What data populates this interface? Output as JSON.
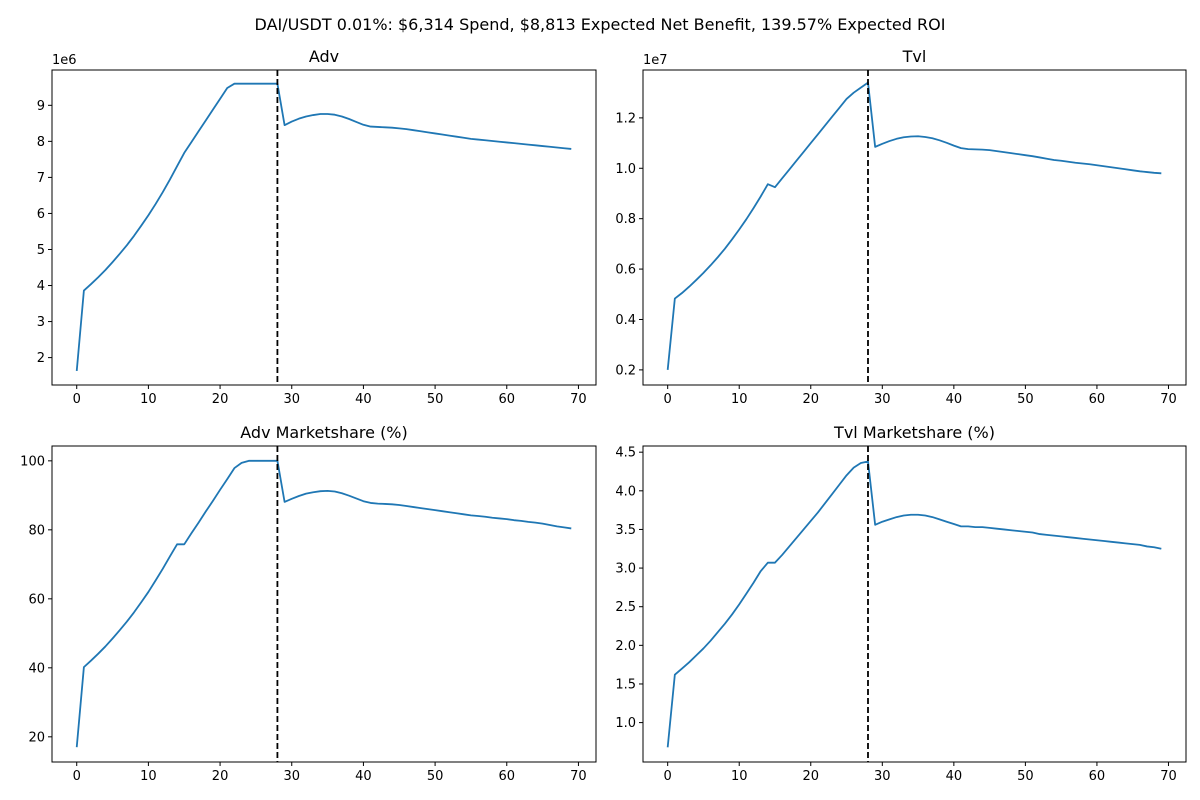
{
  "figure": {
    "suptitle": "DAI/USDT 0.01%: $6,314 Spend, $8,813 Expected Net Benefit, 139.57% Expected ROI"
  },
  "chart_data": [
    {
      "type": "line",
      "title": "Adv",
      "xlabel": "",
      "ylabel": "",
      "offset_text": "1e6",
      "x_ticks": [
        0,
        10,
        20,
        30,
        40,
        50,
        60,
        70
      ],
      "y_ticks": [
        2,
        3,
        4,
        5,
        6,
        7,
        8,
        9
      ],
      "xlim": [
        -3.45,
        72.45
      ],
      "ylim": [
        1.24,
        9.98
      ],
      "vline_x": 28,
      "vline_style": "dashed-black",
      "series": [
        {
          "color": "#1f77b4",
          "x": [
            0,
            1,
            2,
            3,
            4,
            5,
            6,
            7,
            8,
            9,
            10,
            11,
            12,
            13,
            14,
            15,
            16,
            17,
            18,
            19,
            20,
            21,
            22,
            23,
            24,
            25,
            26,
            27,
            28,
            29,
            30,
            31,
            32,
            33,
            34,
            35,
            36,
            37,
            38,
            39,
            40,
            41,
            42,
            43,
            44,
            45,
            46,
            47,
            48,
            49,
            50,
            51,
            52,
            53,
            54,
            55,
            56,
            57,
            58,
            59,
            60,
            61,
            62,
            63,
            64,
            65,
            66,
            67,
            68,
            69
          ],
          "y": [
            1.63,
            3.86,
            4.04,
            4.23,
            4.43,
            4.65,
            4.88,
            5.12,
            5.38,
            5.66,
            5.95,
            6.26,
            6.59,
            6.94,
            7.31,
            7.68,
            7.98,
            8.28,
            8.58,
            8.88,
            9.18,
            9.48,
            9.6,
            9.6,
            9.6,
            9.6,
            9.6,
            9.6,
            9.6,
            8.45,
            8.55,
            8.63,
            8.69,
            8.73,
            8.76,
            8.76,
            8.74,
            8.69,
            8.62,
            8.54,
            8.46,
            8.41,
            8.4,
            8.39,
            8.38,
            8.36,
            8.34,
            8.31,
            8.28,
            8.25,
            8.22,
            8.19,
            8.16,
            8.13,
            8.1,
            8.07,
            8.05,
            8.03,
            8.01,
            7.99,
            7.97,
            7.95,
            7.93,
            7.91,
            7.89,
            7.87,
            7.85,
            7.83,
            7.81,
            7.79
          ]
        }
      ]
    },
    {
      "type": "line",
      "title": "Tvl",
      "xlabel": "",
      "ylabel": "",
      "offset_text": "1e7",
      "x_ticks": [
        0,
        10,
        20,
        30,
        40,
        50,
        60,
        70
      ],
      "y_ticks": [
        0.2,
        0.4,
        0.6,
        0.8,
        1.0,
        1.2
      ],
      "y_tick_labels": [
        "0.2",
        "0.4",
        "0.6",
        "0.8",
        "1.0",
        "1.2"
      ],
      "xlim": [
        -3.45,
        72.45
      ],
      "ylim": [
        0.14,
        1.39
      ],
      "vline_x": 28,
      "vline_style": "dashed-black",
      "series": [
        {
          "color": "#1f77b4",
          "x": [
            0,
            1,
            2,
            3,
            4,
            5,
            6,
            7,
            8,
            9,
            10,
            11,
            12,
            13,
            14,
            15,
            16,
            17,
            18,
            19,
            20,
            21,
            22,
            23,
            24,
            25,
            26,
            27,
            28,
            29,
            30,
            31,
            32,
            33,
            34,
            35,
            36,
            37,
            38,
            39,
            40,
            41,
            42,
            43,
            44,
            45,
            46,
            47,
            48,
            49,
            50,
            51,
            52,
            53,
            54,
            55,
            56,
            57,
            58,
            59,
            60,
            61,
            62,
            63,
            64,
            65,
            66,
            67,
            68,
            69
          ],
          "y": [
            0.2,
            0.483,
            0.505,
            0.53,
            0.557,
            0.585,
            0.615,
            0.647,
            0.681,
            0.718,
            0.757,
            0.798,
            0.842,
            0.888,
            0.937,
            0.925,
            0.96,
            0.995,
            1.03,
            1.065,
            1.1,
            1.135,
            1.17,
            1.205,
            1.24,
            1.275,
            1.3,
            1.32,
            1.34,
            1.085,
            1.097,
            1.108,
            1.117,
            1.123,
            1.126,
            1.127,
            1.124,
            1.119,
            1.111,
            1.101,
            1.09,
            1.08,
            1.076,
            1.075,
            1.074,
            1.072,
            1.068,
            1.064,
            1.06,
            1.056,
            1.052,
            1.048,
            1.043,
            1.038,
            1.033,
            1.03,
            1.026,
            1.022,
            1.019,
            1.016,
            1.012,
            1.008,
            1.004,
            1.0,
            0.996,
            0.992,
            0.988,
            0.985,
            0.982,
            0.98
          ]
        }
      ]
    },
    {
      "type": "line",
      "title": "Adv Marketshare (%)",
      "xlabel": "",
      "ylabel": "",
      "x_ticks": [
        0,
        10,
        20,
        30,
        40,
        50,
        60,
        70
      ],
      "y_ticks": [
        20,
        40,
        60,
        80,
        100
      ],
      "xlim": [
        -3.45,
        72.45
      ],
      "ylim": [
        12.7,
        104.3
      ],
      "vline_x": 28,
      "vline_style": "dashed-black",
      "series": [
        {
          "color": "#1f77b4",
          "x": [
            0,
            1,
            2,
            3,
            4,
            5,
            6,
            7,
            8,
            9,
            10,
            11,
            12,
            13,
            14,
            15,
            16,
            17,
            18,
            19,
            20,
            21,
            22,
            23,
            24,
            25,
            26,
            27,
            28,
            29,
            30,
            31,
            32,
            33,
            34,
            35,
            36,
            37,
            38,
            39,
            40,
            41,
            42,
            43,
            44,
            45,
            46,
            47,
            48,
            49,
            50,
            51,
            52,
            53,
            54,
            55,
            56,
            57,
            58,
            59,
            60,
            61,
            62,
            63,
            64,
            65,
            66,
            67,
            68,
            69
          ],
          "y": [
            17,
            40.2,
            42.1,
            44.1,
            46.2,
            48.5,
            50.9,
            53.4,
            56.1,
            59.0,
            62.0,
            65.3,
            68.7,
            72.3,
            75.8,
            75.8,
            79.0,
            82.1,
            85.3,
            88.4,
            91.6,
            94.7,
            97.9,
            99.4,
            100.0,
            100.0,
            100.0,
            100.0,
            100.0,
            88.1,
            89.0,
            89.8,
            90.5,
            90.9,
            91.2,
            91.3,
            91.1,
            90.6,
            89.9,
            89.1,
            88.3,
            87.8,
            87.6,
            87.5,
            87.4,
            87.2,
            86.9,
            86.6,
            86.3,
            86.0,
            85.7,
            85.4,
            85.1,
            84.8,
            84.5,
            84.2,
            84.0,
            83.8,
            83.5,
            83.3,
            83.1,
            82.8,
            82.6,
            82.3,
            82.1,
            81.8,
            81.4,
            81.0,
            80.7,
            80.4
          ]
        }
      ]
    },
    {
      "type": "line",
      "title": "Tvl Marketshare (%)",
      "xlabel": "",
      "ylabel": "",
      "x_ticks": [
        0,
        10,
        20,
        30,
        40,
        50,
        60,
        70
      ],
      "y_ticks": [
        1.0,
        1.5,
        2.0,
        2.5,
        3.0,
        3.5,
        4.0,
        4.5
      ],
      "y_tick_labels": [
        "1.0",
        "1.5",
        "2.0",
        "2.5",
        "3.0",
        "3.5",
        "4.0",
        "4.5"
      ],
      "xlim": [
        -3.45,
        72.45
      ],
      "ylim": [
        0.49,
        4.58
      ],
      "vline_x": 28,
      "vline_style": "dashed-black",
      "series": [
        {
          "color": "#1f77b4",
          "x": [
            0,
            1,
            2,
            3,
            4,
            5,
            6,
            7,
            8,
            9,
            10,
            11,
            12,
            13,
            14,
            15,
            16,
            17,
            18,
            19,
            20,
            21,
            22,
            23,
            24,
            25,
            26,
            27,
            28,
            29,
            30,
            31,
            32,
            33,
            34,
            35,
            36,
            37,
            38,
            39,
            40,
            41,
            42,
            43,
            44,
            45,
            46,
            47,
            48,
            49,
            50,
            51,
            52,
            53,
            54,
            55,
            56,
            57,
            58,
            59,
            60,
            61,
            62,
            63,
            64,
            65,
            66,
            67,
            68,
            69
          ],
          "y": [
            0.68,
            1.62,
            1.7,
            1.78,
            1.87,
            1.96,
            2.06,
            2.17,
            2.28,
            2.4,
            2.53,
            2.67,
            2.81,
            2.96,
            3.07,
            3.07,
            3.17,
            3.28,
            3.39,
            3.5,
            3.61,
            3.72,
            3.84,
            3.96,
            4.08,
            4.2,
            4.3,
            4.36,
            4.38,
            3.56,
            3.6,
            3.63,
            3.66,
            3.68,
            3.69,
            3.69,
            3.68,
            3.66,
            3.63,
            3.6,
            3.57,
            3.54,
            3.54,
            3.53,
            3.53,
            3.52,
            3.51,
            3.5,
            3.49,
            3.48,
            3.47,
            3.46,
            3.44,
            3.43,
            3.42,
            3.41,
            3.4,
            3.39,
            3.38,
            3.37,
            3.36,
            3.35,
            3.34,
            3.33,
            3.32,
            3.31,
            3.3,
            3.28,
            3.27,
            3.25
          ]
        }
      ]
    }
  ]
}
